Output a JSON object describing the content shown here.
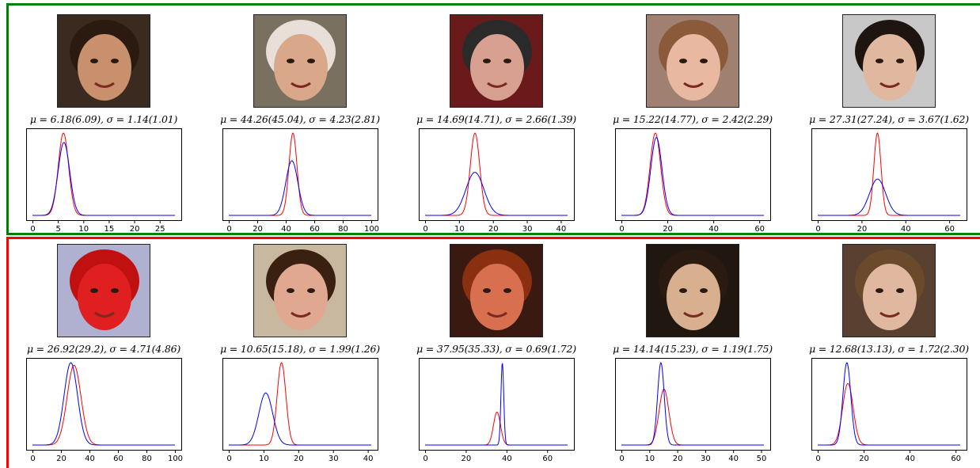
{
  "groups": [
    {
      "border_color": "#008000",
      "samples": [
        {
          "face_icon": "face-photo-boy-dark-hair",
          "face_tone": "#c8906c",
          "hair_tone": "#2a1a10",
          "bg_tone": "#3a2a20",
          "caption": "μ = 6.18(6.09), σ = 1.14(1.01)"
        },
        {
          "face_icon": "face-photo-older-man-glasses",
          "face_tone": "#d9a88a",
          "hair_tone": "#e8e0d8",
          "bg_tone": "#7a7060",
          "caption": "μ = 44.26(45.04), σ = 4.23(2.81)"
        },
        {
          "face_icon": "face-photo-teen-beanie",
          "face_tone": "#d8a090",
          "hair_tone": "#2a2a2a",
          "bg_tone": "#6a1a1a",
          "caption": "μ = 14.69(14.71), σ = 2.66(1.39)"
        },
        {
          "face_icon": "face-photo-girl-smiling",
          "face_tone": "#e8b8a0",
          "hair_tone": "#8a5a3a",
          "bg_tone": "#a08070",
          "caption": "μ = 15.22(14.77), σ = 2.42(2.29)"
        },
        {
          "face_icon": "face-photo-woman-dark-hair",
          "face_tone": "#e0b8a0",
          "hair_tone": "#1e1410",
          "bg_tone": "#c8c8c8",
          "caption": "μ = 27.31(27.24), σ = 3.67(1.62)"
        }
      ]
    },
    {
      "border_color": "#ff0000",
      "samples": [
        {
          "face_icon": "face-photo-red-tinted",
          "face_tone": "#e02020",
          "hair_tone": "#c01010",
          "bg_tone": "#b0b0d0",
          "caption": "μ = 26.92(29.2), σ = 4.71(4.86)"
        },
        {
          "face_icon": "face-photo-boy-brown-hair",
          "face_tone": "#e0a890",
          "hair_tone": "#3a2010",
          "bg_tone": "#c8b8a0",
          "caption": "μ = 10.65(15.18), σ = 1.99(1.26)"
        },
        {
          "face_icon": "face-photo-woman-smiling-tan",
          "face_tone": "#d87050",
          "hair_tone": "#8a3010",
          "bg_tone": "#3a1a10",
          "caption": "μ = 37.95(35.33), σ = 0.69(1.72)"
        },
        {
          "face_icon": "face-photo-boy-candles",
          "face_tone": "#d8b090",
          "hair_tone": "#2a1a10",
          "bg_tone": "#201810",
          "caption": "μ = 14.14(15.23), σ = 1.19(1.75)"
        },
        {
          "face_icon": "face-photo-boy-looking-down",
          "face_tone": "#e0b8a0",
          "hair_tone": "#6a4a2a",
          "bg_tone": "#5a4030",
          "caption": "μ = 12.68(13.13), σ = 1.72(2.30)"
        }
      ]
    }
  ],
  "chart_data": [
    {
      "type": "line",
      "x_range": [
        0,
        28
      ],
      "ticks": [
        "0",
        "5",
        "10",
        "15",
        "20",
        "25"
      ],
      "series": [
        {
          "color": "#ff0000",
          "mu": 6.09,
          "sigma": 1.01
        },
        {
          "color": "#0000ff",
          "mu": 6.18,
          "sigma": 1.14
        }
      ]
    },
    {
      "type": "line",
      "x_range": [
        0,
        100
      ],
      "ticks": [
        "0",
        "20",
        "40",
        "60",
        "80",
        "100"
      ],
      "series": [
        {
          "color": "#ff0000",
          "mu": 45.04,
          "sigma": 2.81
        },
        {
          "color": "#0000ff",
          "mu": 44.26,
          "sigma": 4.23
        }
      ]
    },
    {
      "type": "line",
      "x_range": [
        0,
        42
      ],
      "ticks": [
        "0",
        "10",
        "20",
        "30",
        "40"
      ],
      "series": [
        {
          "color": "#ff0000",
          "mu": 14.71,
          "sigma": 1.39
        },
        {
          "color": "#0000ff",
          "mu": 14.69,
          "sigma": 2.66
        }
      ]
    },
    {
      "type": "line",
      "x_range": [
        0,
        62
      ],
      "ticks": [
        "0",
        "20",
        "40",
        "60"
      ],
      "series": [
        {
          "color": "#ff0000",
          "mu": 14.77,
          "sigma": 2.29
        },
        {
          "color": "#0000ff",
          "mu": 15.22,
          "sigma": 2.42
        }
      ]
    },
    {
      "type": "line",
      "x_range": [
        0,
        65
      ],
      "ticks": [
        "0",
        "20",
        "40",
        "60"
      ],
      "series": [
        {
          "color": "#ff0000",
          "mu": 27.24,
          "sigma": 1.62
        },
        {
          "color": "#0000ff",
          "mu": 27.31,
          "sigma": 3.67
        }
      ]
    },
    {
      "type": "line",
      "x_range": [
        0,
        100
      ],
      "ticks": [
        "0",
        "20",
        "40",
        "60",
        "80",
        "100"
      ],
      "series": [
        {
          "color": "#ff0000",
          "mu": 29.2,
          "sigma": 4.86
        },
        {
          "color": "#0000ff",
          "mu": 26.92,
          "sigma": 4.71
        }
      ]
    },
    {
      "type": "line",
      "x_range": [
        0,
        41
      ],
      "ticks": [
        "0",
        "10",
        "20",
        "30",
        "40"
      ],
      "series": [
        {
          "color": "#ff0000",
          "mu": 15.18,
          "sigma": 1.26
        },
        {
          "color": "#0000ff",
          "mu": 10.65,
          "sigma": 1.99
        }
      ]
    },
    {
      "type": "line",
      "x_range": [
        0,
        70
      ],
      "ticks": [
        "0",
        "20",
        "40",
        "60"
      ],
      "series": [
        {
          "color": "#ff0000",
          "mu": 35.33,
          "sigma": 1.72
        },
        {
          "color": "#0000ff",
          "mu": 37.95,
          "sigma": 0.69
        }
      ]
    },
    {
      "type": "line",
      "x_range": [
        0,
        51
      ],
      "ticks": [
        "0",
        "10",
        "20",
        "30",
        "40",
        "50"
      ],
      "series": [
        {
          "color": "#ff0000",
          "mu": 15.23,
          "sigma": 1.75
        },
        {
          "color": "#0000ff",
          "mu": 14.14,
          "sigma": 1.19
        }
      ]
    },
    {
      "type": "line",
      "x_range": [
        0,
        62
      ],
      "ticks": [
        "0",
        "20",
        "40",
        "60"
      ],
      "series": [
        {
          "color": "#ff0000",
          "mu": 13.13,
          "sigma": 2.3
        },
        {
          "color": "#0000ff",
          "mu": 12.68,
          "sigma": 1.72
        }
      ]
    }
  ]
}
